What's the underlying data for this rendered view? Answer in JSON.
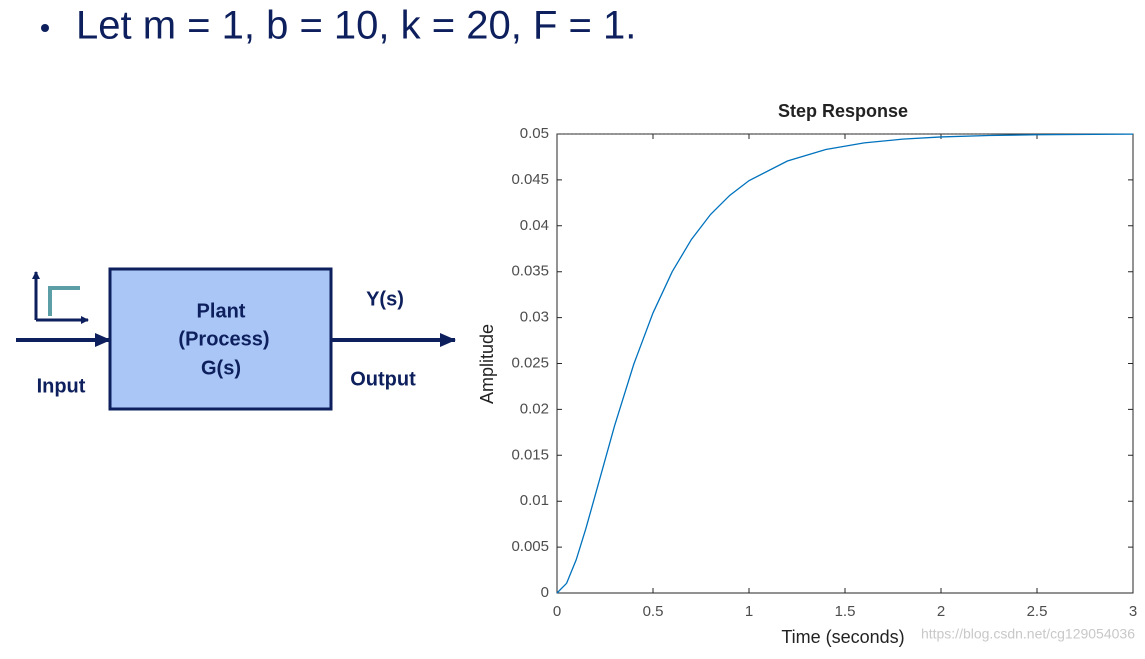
{
  "slide": {
    "bullet": "Let m = 1, b = 10, k = 20, F = 1."
  },
  "diagram": {
    "block_lines": [
      "Plant",
      "(Process)",
      "G(s)"
    ],
    "input_label": "Input",
    "output_signal": "Y(s)",
    "output_label": "Output"
  },
  "watermark": "https://blog.csdn.net/cg129054036",
  "chart_data": {
    "type": "line",
    "title": "Step Response",
    "x_label": "Time (seconds)",
    "y_label": "Amplitude",
    "x": [
      0,
      0.05,
      0.1,
      0.15,
      0.2,
      0.3,
      0.4,
      0.5,
      0.6,
      0.7,
      0.8,
      0.9,
      1.0,
      1.2,
      1.4,
      1.6,
      1.8,
      2.0,
      2.25,
      2.5,
      3.0
    ],
    "values": [
      0,
      0.00106,
      0.00362,
      0.00699,
      0.01072,
      0.01822,
      0.02493,
      0.03051,
      0.035,
      0.03851,
      0.04124,
      0.04332,
      0.04492,
      0.04706,
      0.04831,
      0.04903,
      0.04944,
      0.04968,
      0.04984,
      0.04992,
      0.04999
    ],
    "color": "#0072bd",
    "steady_state": 0.05,
    "xlim": [
      0,
      3
    ],
    "ylim": [
      0,
      0.05
    ],
    "xticks": [
      0,
      0.5,
      1,
      1.5,
      2,
      2.5,
      3
    ],
    "yticks": [
      0,
      0.005,
      0.01,
      0.015,
      0.02,
      0.025,
      0.03,
      0.035,
      0.04,
      0.045,
      0.05
    ]
  }
}
